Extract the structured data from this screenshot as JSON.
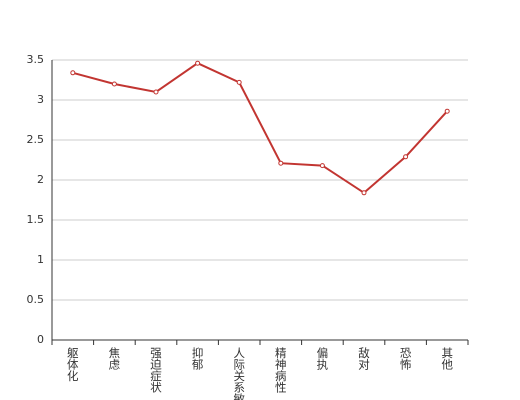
{
  "chart_data": {
    "type": "line",
    "categories": [
      "躯体化",
      "焦虑",
      "强迫症状",
      "抑郁",
      "人际关系敏感",
      "精神病性",
      "偏执",
      "敌对",
      "恐怖",
      "其他"
    ],
    "series": [
      {
        "color": "#c23531",
        "values": [
          3.34,
          3.2,
          3.1,
          3.46,
          3.22,
          2.21,
          2.18,
          1.84,
          2.29,
          2.86
        ]
      }
    ],
    "ylim": [
      0,
      3.5
    ],
    "yticks": [
      0,
      0.5,
      1,
      1.5,
      2,
      2.5,
      3,
      3.5
    ],
    "grid": true
  }
}
